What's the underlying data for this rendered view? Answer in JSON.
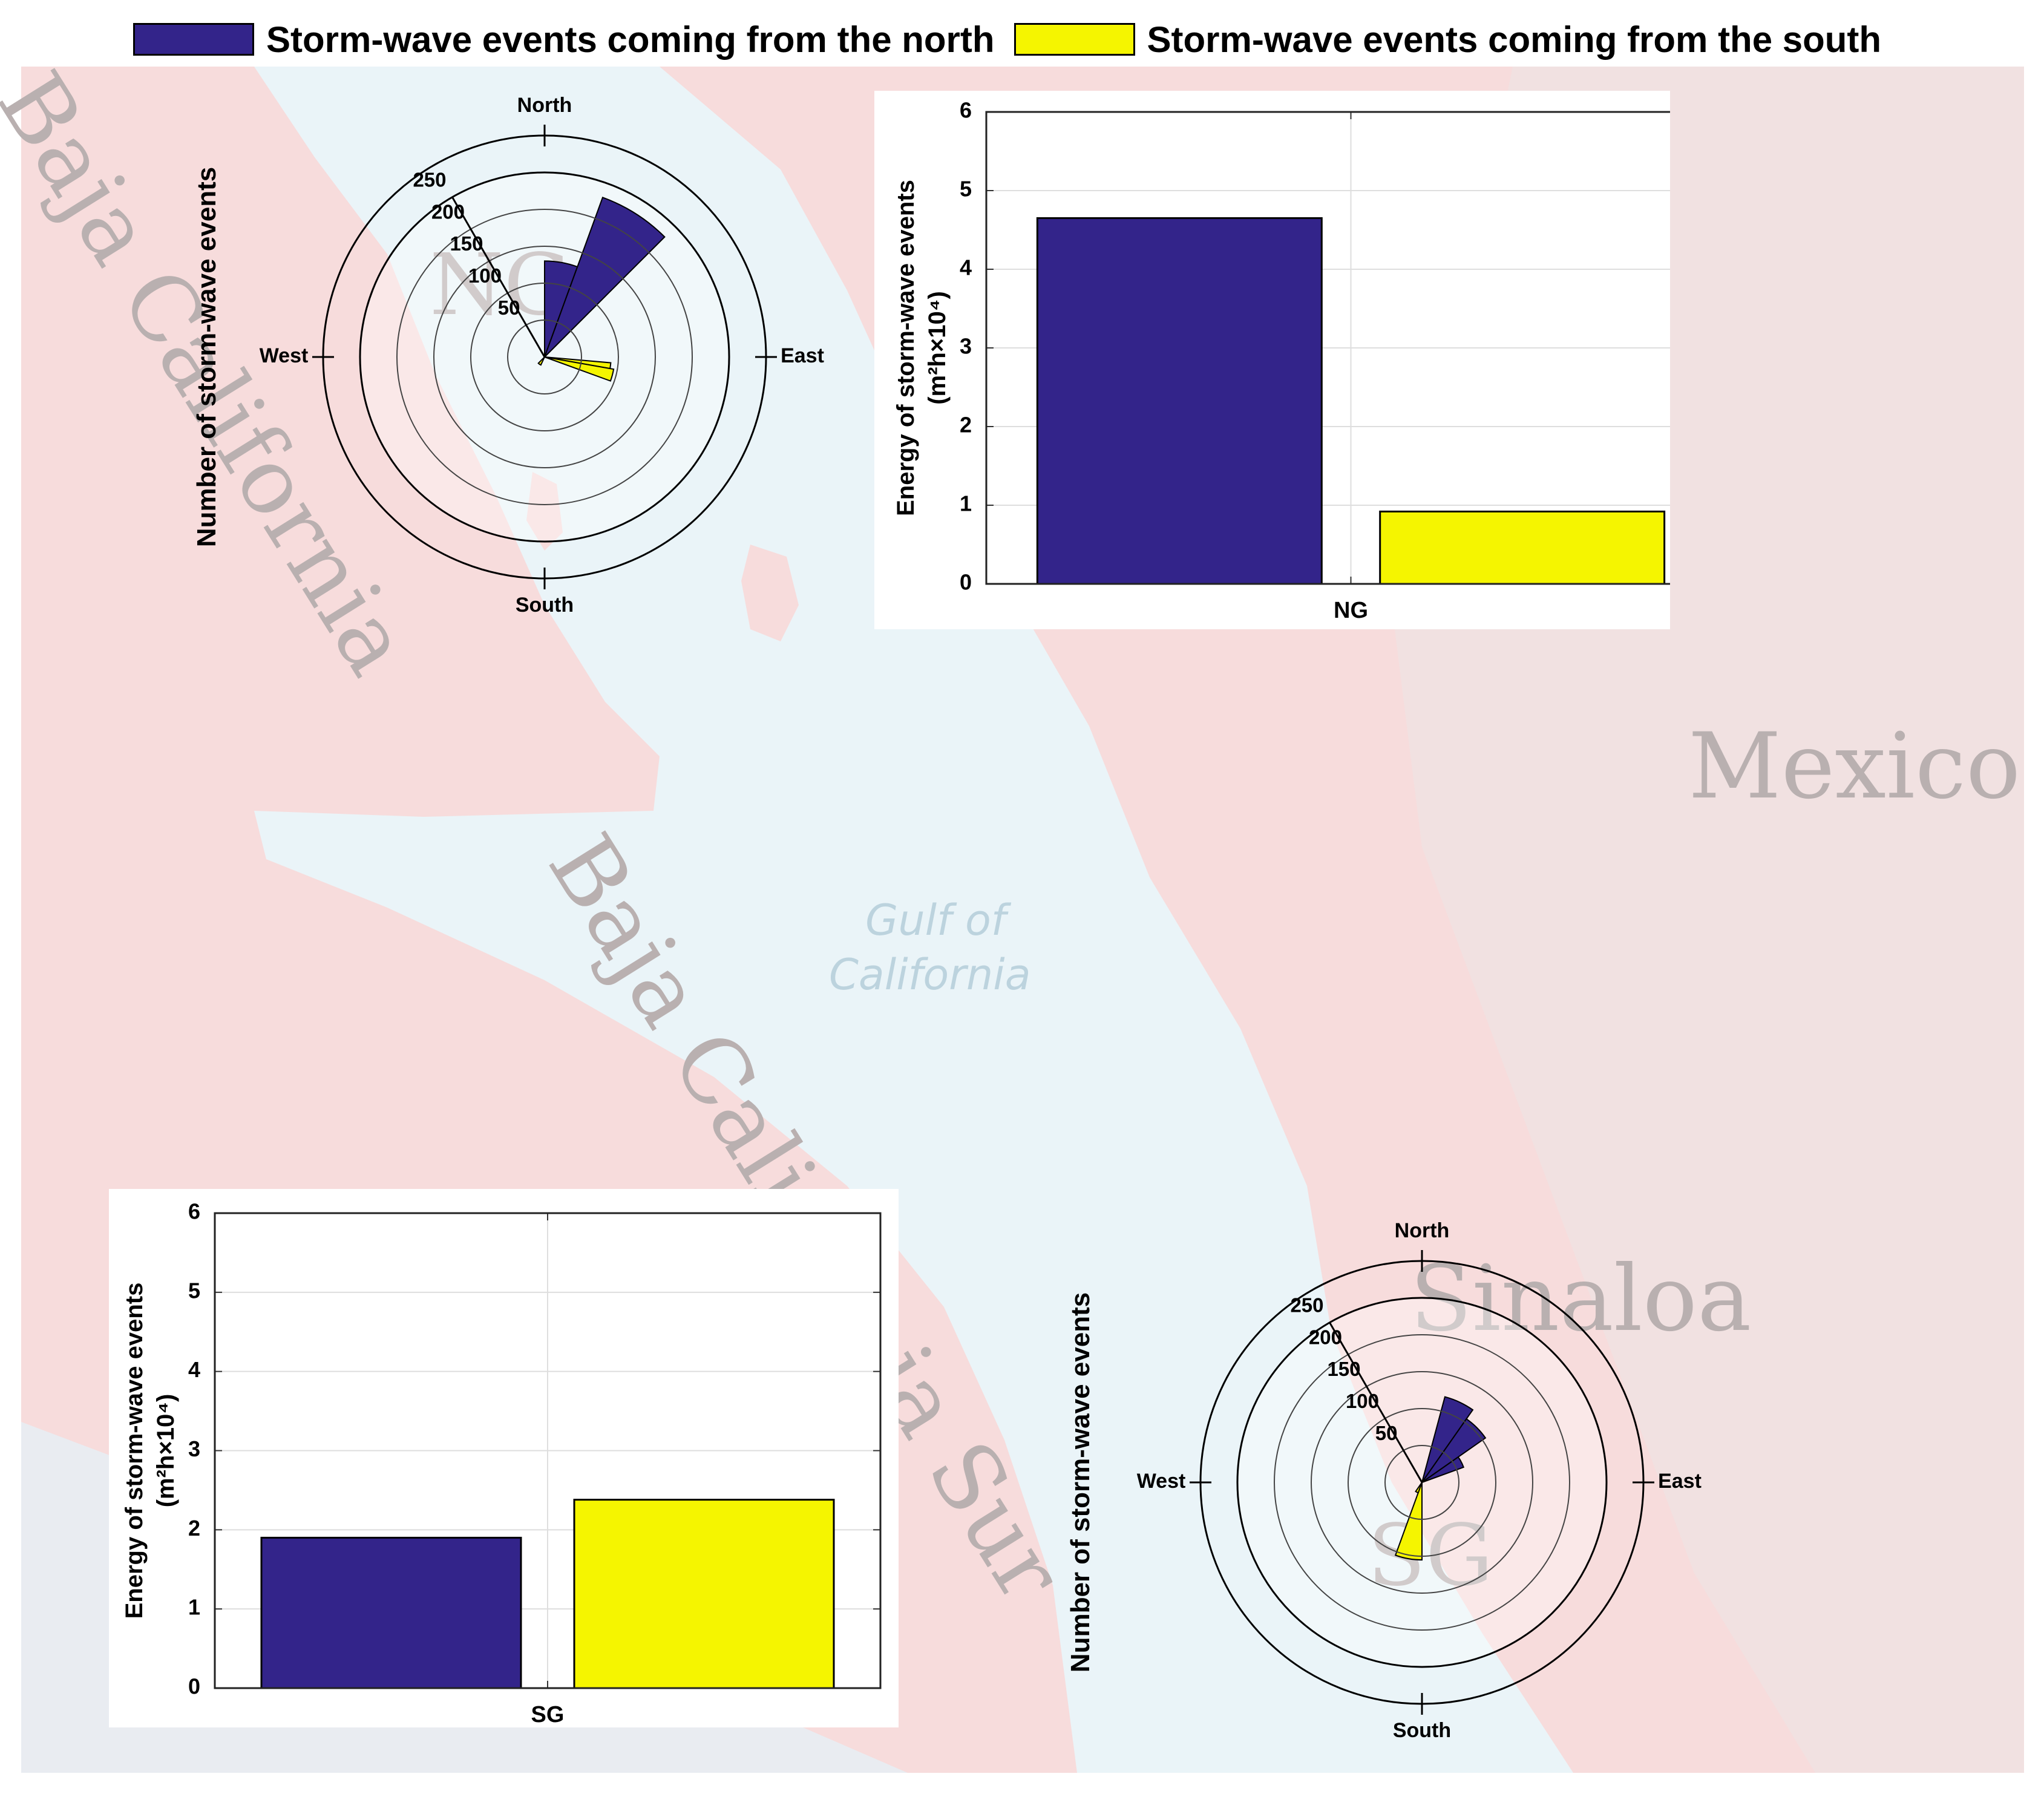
{
  "legend": {
    "north_label": "Storm-wave events coming from the north",
    "south_label": "Storm-wave events coming from the south",
    "north_color": "#33248a",
    "south_color": "#f5f500"
  },
  "map_labels": {
    "mexico": "Mexico",
    "gulf_line1": "Gulf of",
    "gulf_line2": "California",
    "baja_california": "Baja California",
    "baja_california_sur": "Baja California Sur",
    "sinaloa": "Sinaloa",
    "ng": "NG",
    "sg": "SG"
  },
  "chart_data": [
    {
      "type": "polar-rose",
      "site": "NG",
      "ylabel": "Number of storm-wave events",
      "direction_labels": [
        "North",
        "East",
        "South",
        "West"
      ],
      "r_ticks": [
        50,
        100,
        150,
        200,
        250
      ],
      "r_max": 250,
      "series": [
        {
          "name": "Storm-wave events coming from the north",
          "sectors": [
            {
              "from_deg": 0,
              "to_deg": 20,
              "value": 130
            },
            {
              "from_deg": 20,
              "to_deg": 45,
              "value": 230
            }
          ]
        },
        {
          "name": "Storm-wave events coming from the south",
          "sectors": [
            {
              "from_deg": 95,
              "to_deg": 100,
              "value": 90
            },
            {
              "from_deg": 100,
              "to_deg": 110,
              "value": 95
            },
            {
              "from_deg": 205,
              "to_deg": 225,
              "value": 12
            }
          ]
        }
      ]
    },
    {
      "type": "bar",
      "site": "NG",
      "categories": [
        "NG"
      ],
      "series": [
        {
          "name": "Storm-wave events coming from the north",
          "values": [
            4.65
          ]
        },
        {
          "name": "Storm-wave events coming from the south",
          "values": [
            0.92
          ]
        }
      ],
      "ylabel_line1": "Energy of storm-wave events",
      "ylabel_line2": "(m²h×10⁴)",
      "ylim": [
        0,
        6
      ],
      "yticks": [
        "0",
        "1",
        "2",
        "3",
        "4",
        "5",
        "6"
      ],
      "grid": true
    },
    {
      "type": "bar",
      "site": "SG",
      "categories": [
        "SG"
      ],
      "series": [
        {
          "name": "Storm-wave events coming from the north",
          "values": [
            1.9
          ]
        },
        {
          "name": "Storm-wave events coming from the south",
          "values": [
            2.38
          ]
        }
      ],
      "ylabel_line1": "Energy of storm-wave events",
      "ylabel_line2": "(m²h×10⁴)",
      "ylim": [
        0,
        6
      ],
      "yticks": [
        "0",
        "1",
        "2",
        "3",
        "4",
        "5",
        "6"
      ],
      "grid": true
    },
    {
      "type": "polar-rose",
      "site": "SG",
      "ylabel": "Number of storm-wave events",
      "direction_labels": [
        "North",
        "East",
        "South",
        "West"
      ],
      "r_ticks": [
        50,
        100,
        150,
        200,
        250
      ],
      "r_max": 250,
      "series": [
        {
          "name": "Storm-wave events coming from the north",
          "sectors": [
            {
              "from_deg": 15,
              "to_deg": 35,
              "value": 120
            },
            {
              "from_deg": 35,
              "to_deg": 55,
              "value": 105
            },
            {
              "from_deg": 55,
              "to_deg": 70,
              "value": 60
            }
          ]
        },
        {
          "name": "Storm-wave events coming from the south",
          "sectors": [
            {
              "from_deg": 180,
              "to_deg": 200,
              "value": 105
            },
            {
              "from_deg": 200,
              "to_deg": 215,
              "value": 15
            }
          ]
        }
      ]
    }
  ]
}
